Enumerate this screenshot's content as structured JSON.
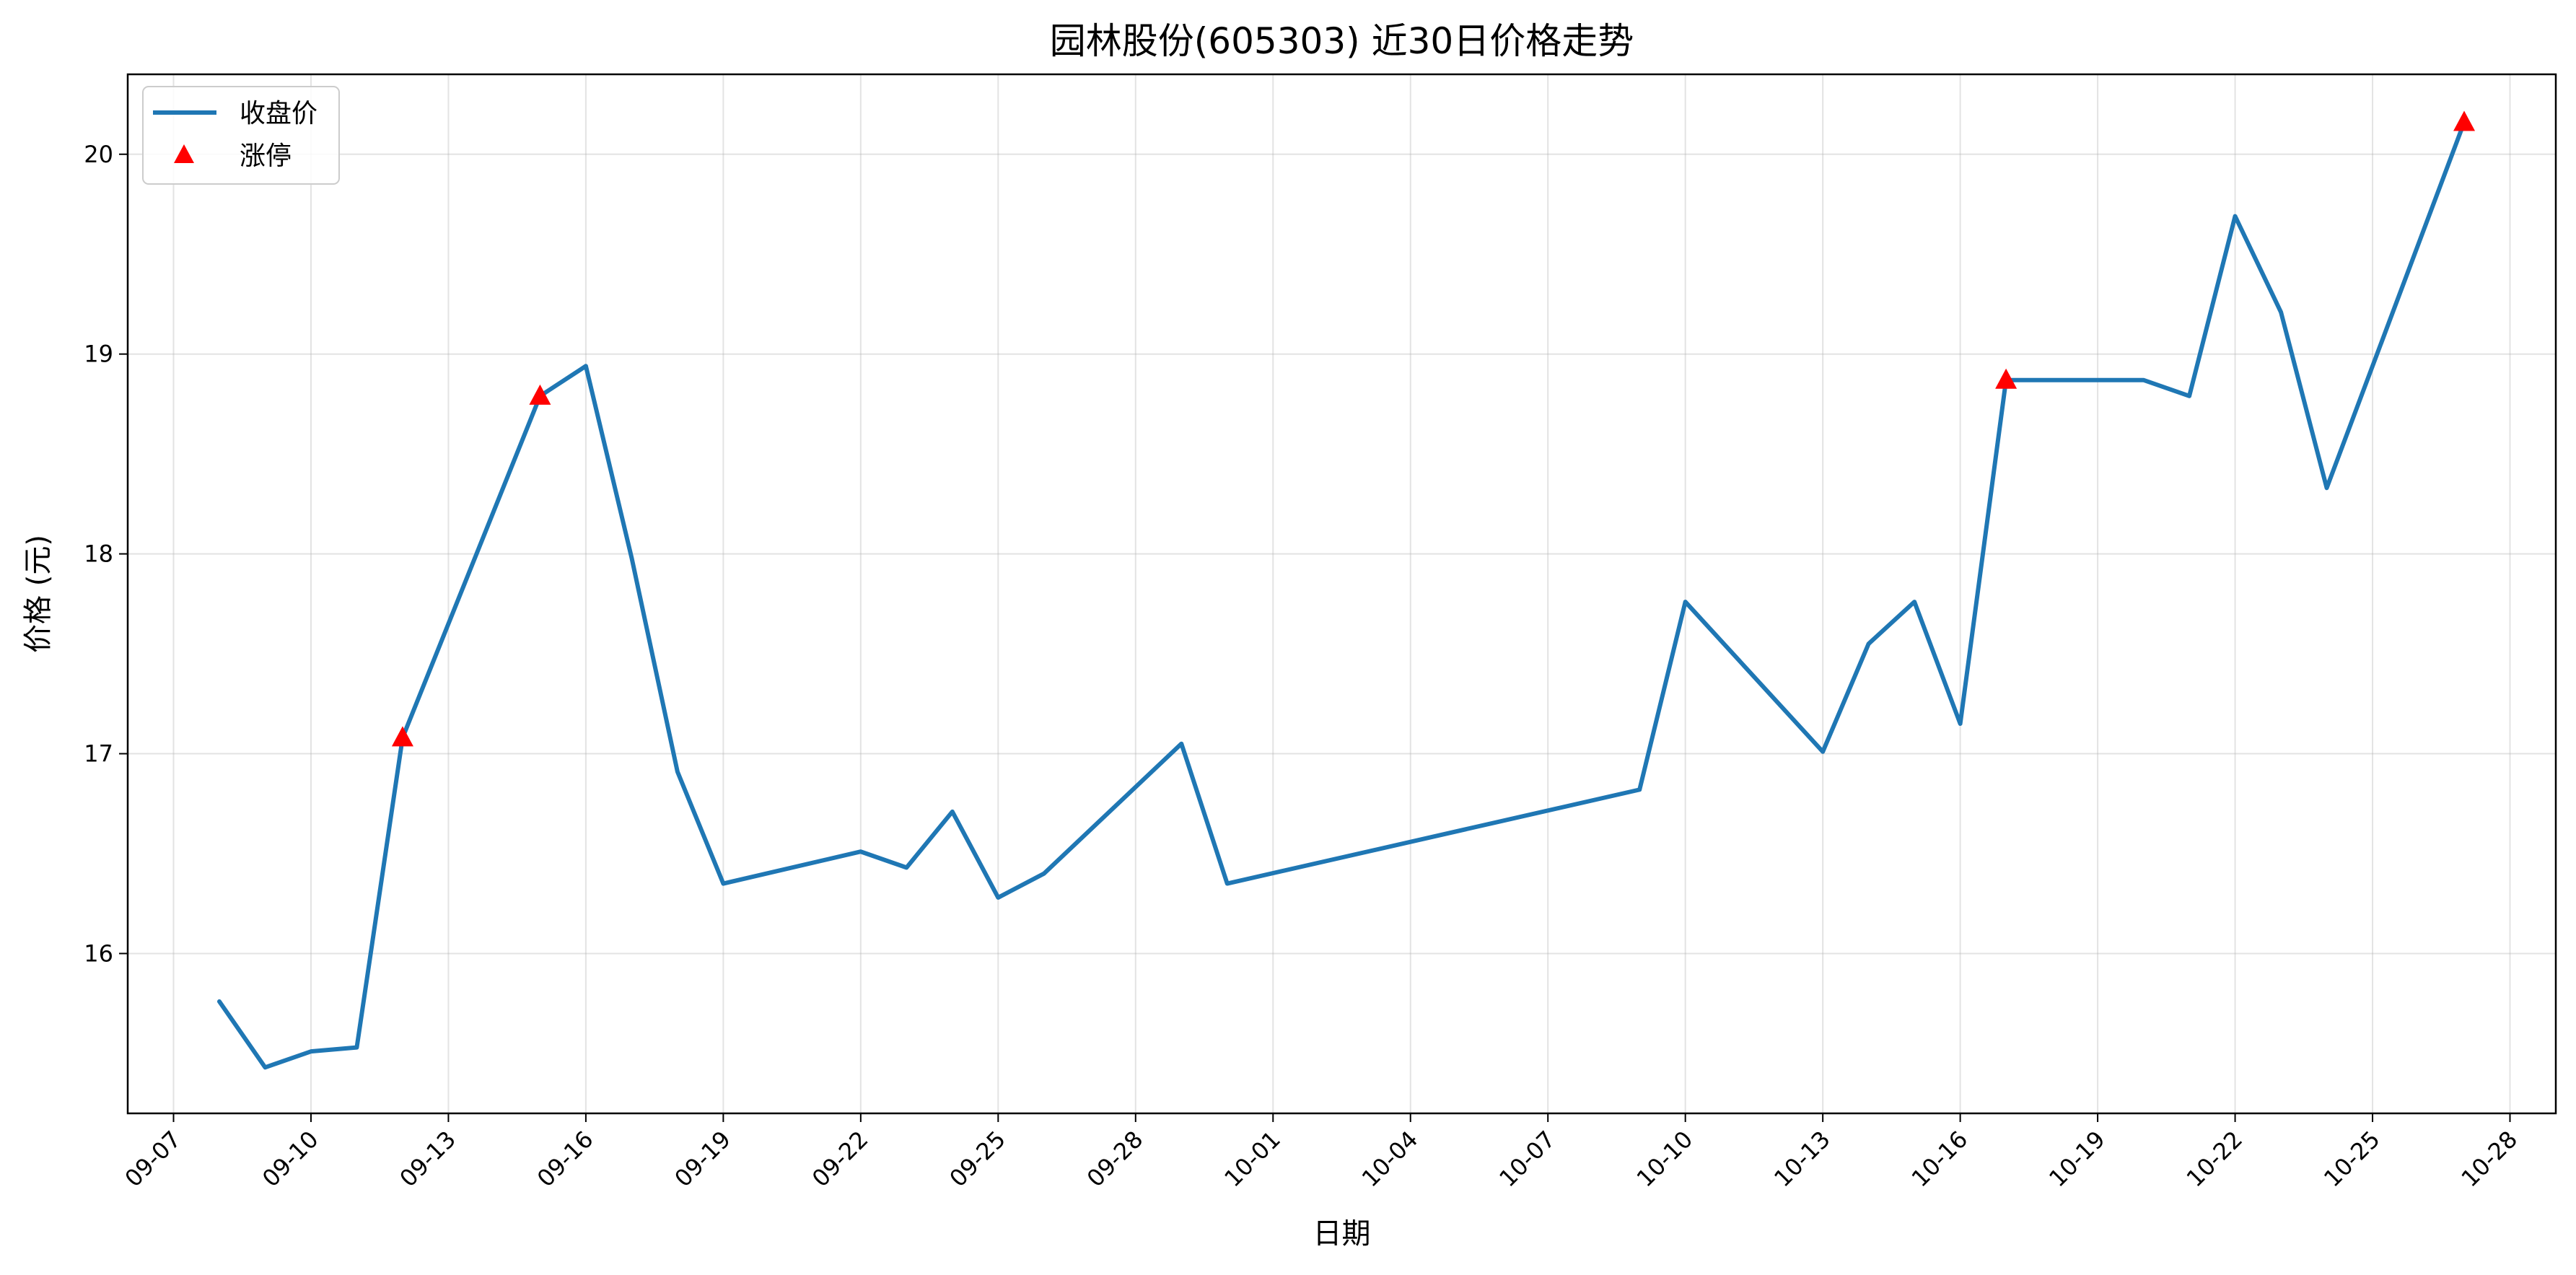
{
  "chart_data": {
    "type": "line",
    "title": "园林股份(605303) 近30日价格走势",
    "xlabel": "日期",
    "ylabel": "价格 (元)",
    "grid": true,
    "legend_position": "top-left",
    "xlim": [
      "2025-09-06",
      "2025-10-29"
    ],
    "ylim": [
      15.2,
      20.4
    ],
    "x_ticks": [
      "09-07",
      "09-10",
      "09-13",
      "09-16",
      "09-19",
      "09-22",
      "09-25",
      "09-28",
      "10-01",
      "10-04",
      "10-07",
      "10-10",
      "10-13",
      "10-16",
      "10-19",
      "10-22",
      "10-25",
      "10-28"
    ],
    "x_tick_dates": [
      "2025-09-07",
      "2025-09-10",
      "2025-09-13",
      "2025-09-16",
      "2025-09-19",
      "2025-09-22",
      "2025-09-25",
      "2025-09-28",
      "2025-10-01",
      "2025-10-04",
      "2025-10-07",
      "2025-10-10",
      "2025-10-13",
      "2025-10-16",
      "2025-10-19",
      "2025-10-22",
      "2025-10-25",
      "2025-10-28"
    ],
    "y_ticks": [
      16,
      17,
      18,
      19,
      20
    ],
    "series": [
      {
        "name": "收盘价",
        "kind": "line",
        "color": "#1f77b4",
        "points": [
          {
            "x": "2025-09-08",
            "y": 15.76
          },
          {
            "x": "2025-09-09",
            "y": 15.43
          },
          {
            "x": "2025-09-10",
            "y": 15.51
          },
          {
            "x": "2025-09-11",
            "y": 15.53
          },
          {
            "x": "2025-09-12",
            "y": 17.08
          },
          {
            "x": "2025-09-15",
            "y": 18.79
          },
          {
            "x": "2025-09-16",
            "y": 18.94
          },
          {
            "x": "2025-09-17",
            "y": 17.98
          },
          {
            "x": "2025-09-18",
            "y": 16.91
          },
          {
            "x": "2025-09-19",
            "y": 16.35
          },
          {
            "x": "2025-09-22",
            "y": 16.51
          },
          {
            "x": "2025-09-23",
            "y": 16.43
          },
          {
            "x": "2025-09-24",
            "y": 16.71
          },
          {
            "x": "2025-09-25",
            "y": 16.28
          },
          {
            "x": "2025-09-26",
            "y": 16.4
          },
          {
            "x": "2025-09-29",
            "y": 17.05
          },
          {
            "x": "2025-09-30",
            "y": 16.35
          },
          {
            "x": "2025-10-09",
            "y": 16.82
          },
          {
            "x": "2025-10-10",
            "y": 17.76
          },
          {
            "x": "2025-10-13",
            "y": 17.01
          },
          {
            "x": "2025-10-14",
            "y": 17.55
          },
          {
            "x": "2025-10-15",
            "y": 17.76
          },
          {
            "x": "2025-10-16",
            "y": 17.15
          },
          {
            "x": "2025-10-17",
            "y": 18.87
          },
          {
            "x": "2025-10-20",
            "y": 18.87
          },
          {
            "x": "2025-10-21",
            "y": 18.79
          },
          {
            "x": "2025-10-22",
            "y": 19.69
          },
          {
            "x": "2025-10-23",
            "y": 19.21
          },
          {
            "x": "2025-10-24",
            "y": 18.33
          },
          {
            "x": "2025-10-27",
            "y": 20.16
          }
        ]
      },
      {
        "name": "涨停",
        "kind": "scatter",
        "marker": "triangle-up",
        "color": "#ff0000",
        "points": [
          {
            "x": "2025-09-12",
            "y": 17.08
          },
          {
            "x": "2025-09-15",
            "y": 18.79
          },
          {
            "x": "2025-10-17",
            "y": 18.87
          },
          {
            "x": "2025-10-27",
            "y": 20.16
          }
        ]
      }
    ]
  }
}
